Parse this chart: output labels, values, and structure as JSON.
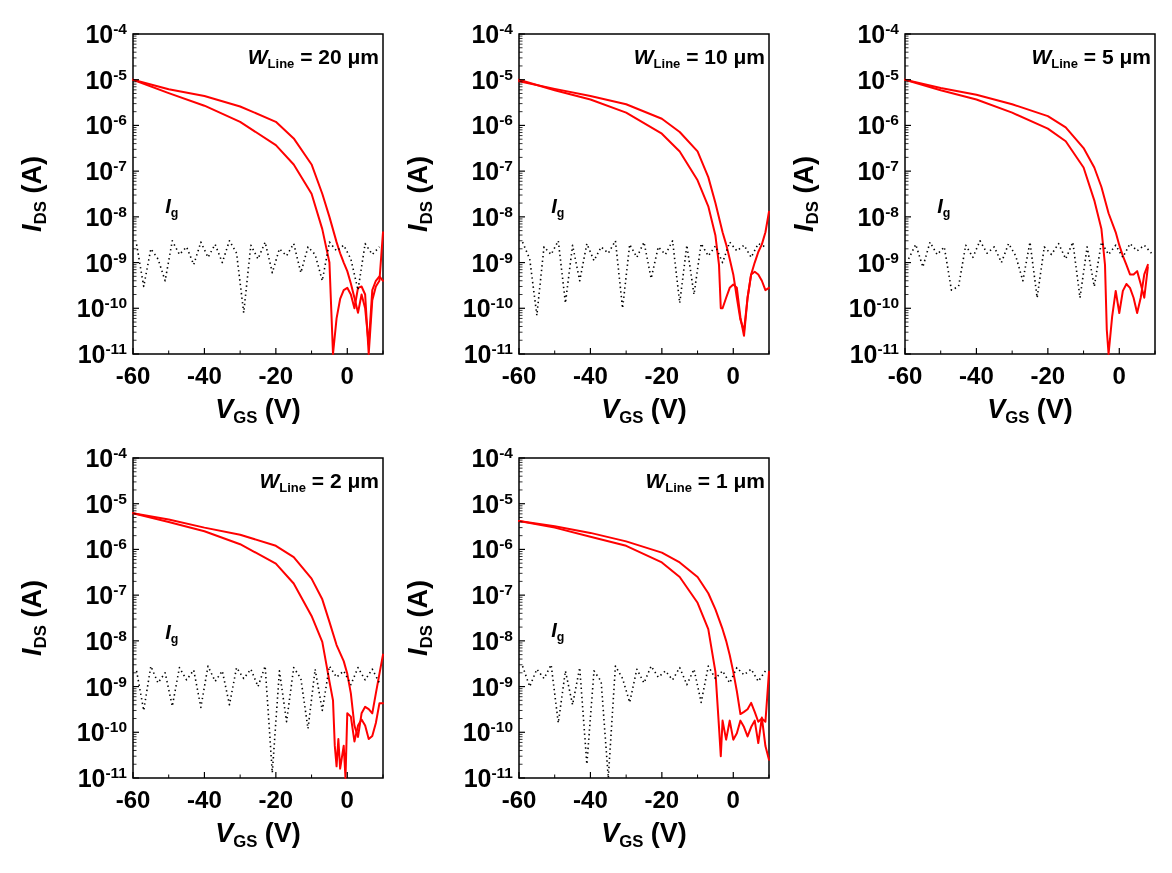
{
  "chart_data": [
    {
      "type": "line",
      "title": "W$_{Line}$ = 20 μm",
      "xlabel": "V$_{GS}$ (V)",
      "ylabel": "I$_{DS}$ (A)",
      "log": "y",
      "xlim": [
        -60,
        10
      ],
      "ylim": [
        1e-11,
        0.0001
      ],
      "xticks": [
        -60,
        -40,
        -20,
        0
      ],
      "yticks": [
        {
          "value": 1e-11,
          "label": "10$^{-11}$"
        },
        {
          "value": 1e-10,
          "label": "10$^{-10}$"
        },
        {
          "value": 1e-09,
          "label": "10$^{-9}$"
        },
        {
          "value": 1e-08,
          "label": "10$^{-8}$"
        },
        {
          "value": 1e-07,
          "label": "10$^{-7}$"
        },
        {
          "value": 1e-06,
          "label": "10$^{-6}$"
        },
        {
          "value": 1e-05,
          "label": "10$^{-5}$"
        },
        {
          "value": 0.0001,
          "label": "10$^{-4}$"
        }
      ],
      "series": [
        {
          "color": "#ff0000",
          "line_style": "solid",
          "x": [
            -60,
            -50,
            -40,
            -30,
            -20,
            -15,
            -10,
            -7,
            -5,
            -3,
            -2,
            -1,
            0,
            1,
            2,
            3,
            4,
            5,
            6,
            7,
            8,
            9,
            10
          ],
          "values": [
            1e-05,
            6.2e-06,
            4.4e-06,
            2.6e-06,
            1.2e-06,
            5.2e-07,
            1.4e-07,
            3.2e-08,
            1e-08,
            2.8e-09,
            1.6e-09,
            1e-09,
            6.5e-10,
            3.5e-10,
            1.7e-10,
            8e-11,
            2e-10,
            1e-10,
            1.6e-11,
            2.5e-10,
            4e-10,
            5e-10,
            4e-10
          ]
        },
        {
          "color": "#ff0000",
          "line_style": "solid",
          "x": [
            -60,
            -50,
            -40,
            -30,
            -20,
            -15,
            -10,
            -7,
            -5,
            -4.5,
            -4,
            -3,
            -2,
            -1,
            0,
            1,
            2,
            3,
            4,
            5,
            6,
            7,
            8,
            9,
            10
          ],
          "values": [
            1e-05,
            5.1e-06,
            2.7e-06,
            1.2e-06,
            3.7e-07,
            1.4e-07,
            3.2e-08,
            5.4e-09,
            1e-09,
            1e-10,
            1e-11,
            6e-11,
            1.6e-10,
            2.5e-10,
            2.8e-10,
            2e-10,
            1e-10,
            2.8e-10,
            3e-10,
            2e-10,
            1e-11,
            1.5e-10,
            3e-10,
            4e-10,
            4.6e-09
          ]
        },
        {
          "name": "I$_{g}$",
          "color": "#000000",
          "line_style": "dotted",
          "x": [
            -59,
            -57,
            -55,
            -53,
            -51,
            -49,
            -47,
            -45,
            -43,
            -41,
            -39,
            -37,
            -35,
            -33,
            -31,
            -29,
            -27,
            -25,
            -23,
            -21,
            -19,
            -17,
            -15,
            -13,
            -11,
            -9,
            -7,
            -5,
            -3,
            -1,
            1,
            3,
            5,
            7,
            9
          ],
          "values": [
            2.5e-09,
            3e-10,
            2e-09,
            1.2e-09,
            4e-10,
            3e-09,
            1.5e-09,
            2.2e-09,
            9e-10,
            2.8e-09,
            1.3e-09,
            2.5e-09,
            1e-09,
            3e-09,
            1.6e-09,
            8e-11,
            2.4e-09,
            1.2e-09,
            2.8e-09,
            6e-10,
            2e-09,
            1.4e-09,
            2.6e-09,
            6e-10,
            2.2e-09,
            1.5e-09,
            4e-10,
            2.8e-09,
            1.8e-09,
            2.4e-09,
            1.2e-09,
            2.5e-10,
            2.6e-09,
            1.5e-09,
            2.2e-09
          ]
        }
      ]
    },
    {
      "type": "line",
      "title": "W$_{Line}$ = 10 μm",
      "xlabel": "V$_{GS}$ (V)",
      "ylabel": "I$_{DS}$ (A)",
      "log": "y",
      "xlim": [
        -60,
        10
      ],
      "ylim": [
        1e-11,
        0.0001
      ],
      "xticks": [
        -60,
        -40,
        -20,
        0
      ],
      "yticks": [
        {
          "value": 1e-11,
          "label": "10$^{-11}$"
        },
        {
          "value": 1e-10,
          "label": "10$^{-10}$"
        },
        {
          "value": 1e-09,
          "label": "10$^{-9}$"
        },
        {
          "value": 1e-08,
          "label": "10$^{-8}$"
        },
        {
          "value": 1e-07,
          "label": "10$^{-7}$"
        },
        {
          "value": 1e-06,
          "label": "10$^{-6}$"
        },
        {
          "value": 1e-05,
          "label": "10$^{-5}$"
        },
        {
          "value": 0.0001,
          "label": "10$^{-4}$"
        }
      ],
      "series": [
        {
          "color": "#ff0000",
          "line_style": "solid",
          "x": [
            -60,
            -50,
            -40,
            -30,
            -20,
            -15,
            -10,
            -7,
            -5,
            -3,
            -2,
            -1,
            0,
            1,
            2,
            3,
            4,
            5,
            6,
            7,
            8,
            9,
            10
          ],
          "values": [
            9.3e-06,
            6.3e-06,
            4.4e-06,
            2.9e-06,
            1.4e-06,
            7.2e-07,
            2.7e-07,
            7.4e-08,
            2e-08,
            4.6e-09,
            2.5e-09,
            1.2e-09,
            5.5e-10,
            1.7e-10,
            5.6e-11,
            3.2e-11,
            1.7e-10,
            5.5e-10,
            6.3e-10,
            5.5e-10,
            4e-10,
            2.5e-10,
            2.8e-10
          ]
        },
        {
          "color": "#ff0000",
          "line_style": "solid",
          "x": [
            -60,
            -50,
            -40,
            -30,
            -20,
            -15,
            -10,
            -7,
            -5,
            -4,
            -3.5,
            -3,
            -2,
            -1,
            0,
            1,
            2,
            3,
            4,
            5,
            6,
            7,
            8,
            9,
            10
          ],
          "values": [
            1e-05,
            5.9e-06,
            3.7e-06,
            1.9e-06,
            6.6e-07,
            2.7e-07,
            6.3e-08,
            1.7e-08,
            3.9e-09,
            8.9e-10,
            1e-10,
            1e-10,
            1.7e-10,
            2.8e-10,
            3.3e-10,
            2.8e-10,
            6.3e-11,
            2.5e-11,
            1.7e-10,
            5.5e-10,
            1e-09,
            1.7e-09,
            2.5e-09,
            4.6e-09,
            1.3e-08
          ]
        },
        {
          "name": "I$_{g}$",
          "color": "#000000",
          "line_style": "dotted",
          "x": [
            -59,
            -57,
            -55,
            -53,
            -51,
            -49,
            -47,
            -45,
            -43,
            -41,
            -39,
            -37,
            -35,
            -33,
            -31,
            -29,
            -27,
            -25,
            -23,
            -21,
            -19,
            -17,
            -15,
            -13,
            -11,
            -9,
            -7,
            -5,
            -3,
            -1,
            1,
            3,
            5,
            7,
            9
          ],
          "values": [
            2.8e-09,
            1.2e-09,
            7e-11,
            2.2e-09,
            1.5e-09,
            3e-09,
            1.3e-10,
            2.4e-09,
            4e-10,
            2.6e-09,
            1.1e-09,
            2.2e-09,
            1.6e-09,
            3e-09,
            1e-10,
            2.5e-09,
            1.3e-09,
            2.8e-09,
            4.5e-10,
            2.2e-09,
            1.5e-09,
            3e-09,
            1.3e-10,
            2.4e-09,
            2e-10,
            2.6e-09,
            1.4e-09,
            2.3e-09,
            1e-09,
            2.8e-09,
            1.8e-09,
            2.4e-09,
            1.3e-09,
            2.6e-09,
            2.2e-09
          ]
        }
      ]
    },
    {
      "type": "line",
      "title": "W$_{Line}$ = 5 μm",
      "xlabel": "V$_{GS}$ (V)",
      "ylabel": "I$_{DS}$ (A)",
      "log": "y",
      "xlim": [
        -60,
        10
      ],
      "ylim": [
        1e-11,
        0.0001
      ],
      "xticks": [
        -60,
        -40,
        -20,
        0
      ],
      "yticks": [
        {
          "value": 1e-11,
          "label": "10$^{-11}$"
        },
        {
          "value": 1e-10,
          "label": "10$^{-10}$"
        },
        {
          "value": 1e-09,
          "label": "10$^{-9}$"
        },
        {
          "value": 1e-08,
          "label": "10$^{-8}$"
        },
        {
          "value": 1e-07,
          "label": "10$^{-7}$"
        },
        {
          "value": 1e-06,
          "label": "10$^{-6}$"
        },
        {
          "value": 1e-05,
          "label": "10$^{-5}$"
        },
        {
          "value": 0.0001,
          "label": "10$^{-4}$"
        }
      ],
      "series": [
        {
          "color": "#ff0000",
          "line_style": "solid",
          "x": [
            -60,
            -50,
            -40,
            -30,
            -20,
            -15,
            -10,
            -7,
            -5,
            -3,
            -1,
            0,
            1,
            2,
            3,
            4,
            5,
            6,
            7,
            8
          ],
          "values": [
            1e-05,
            6.6e-06,
            4.7e-06,
            2.9e-06,
            1.6e-06,
            9.1e-07,
            3.2e-07,
            1.2e-07,
            4.5e-08,
            1.2e-08,
            4.6e-09,
            2.4e-09,
            1.4e-09,
            8.9e-10,
            5.5e-10,
            5.5e-10,
            6.5e-10,
            3.4e-10,
            1.7e-10,
            7.9e-10
          ]
        },
        {
          "color": "#ff0000",
          "line_style": "solid",
          "x": [
            -60,
            -50,
            -40,
            -30,
            -20,
            -15,
            -10,
            -7,
            -5,
            -4,
            -3.5,
            -3,
            -2,
            -1,
            0,
            1,
            2,
            3,
            4,
            5,
            6,
            7,
            8
          ],
          "values": [
            1e-05,
            5.9e-06,
            3.7e-06,
            1.9e-06,
            8.5e-07,
            4.5e-07,
            1.2e-07,
            2.3e-08,
            5.4e-09,
            8.9e-10,
            3.4e-11,
            1e-11,
            6.6e-11,
            2.4e-10,
            7.9e-11,
            2.4e-10,
            3.4e-10,
            2.8e-10,
            1.7e-10,
            7.9e-11,
            1.7e-10,
            5.5e-10,
            8.9e-10
          ]
        },
        {
          "name": "I$_{g}$",
          "color": "#000000",
          "line_style": "dotted",
          "x": [
            -59,
            -57,
            -55,
            -53,
            -51,
            -49,
            -47,
            -45,
            -43,
            -41,
            -39,
            -37,
            -35,
            -33,
            -31,
            -29,
            -27,
            -25,
            -23,
            -21,
            -19,
            -17,
            -15,
            -13,
            -11,
            -9,
            -7,
            -5,
            -3,
            -1,
            1,
            3,
            5,
            7,
            9
          ],
          "values": [
            1.2e-09,
            2.5e-09,
            8e-10,
            2.8e-09,
            1.5e-09,
            2.2e-09,
            2.5e-10,
            3e-10,
            2.4e-09,
            1.3e-09,
            3e-09,
            1.6e-09,
            2.2e-09,
            1e-09,
            2.6e-09,
            1.4e-09,
            4e-10,
            2.8e-09,
            1.7e-10,
            2.2e-09,
            1.5e-09,
            2.6e-09,
            1.2e-09,
            2.8e-09,
            1.7e-10,
            2.2e-09,
            3e-10,
            2.8e-09,
            1.5e-09,
            2.4e-09,
            1.3e-09,
            2.6e-09,
            1.8e-09,
            2.4e-09,
            1.6e-09
          ]
        }
      ]
    },
    {
      "type": "line",
      "title": "W$_{Line}$ = 2 μm",
      "xlabel": "V$_{GS}$ (V)",
      "ylabel": "I$_{DS}$ (A)",
      "log": "y",
      "xlim": [
        -60,
        10
      ],
      "ylim": [
        1e-11,
        0.0001
      ],
      "xticks": [
        -60,
        -40,
        -20,
        0
      ],
      "yticks": [
        {
          "value": 1e-11,
          "label": "10$^{-11}$"
        },
        {
          "value": 1e-10,
          "label": "10$^{-10}$"
        },
        {
          "value": 1e-09,
          "label": "10$^{-9}$"
        },
        {
          "value": 1e-08,
          "label": "10$^{-8}$"
        },
        {
          "value": 1e-07,
          "label": "10$^{-7}$"
        },
        {
          "value": 1e-06,
          "label": "10$^{-6}$"
        },
        {
          "value": 1e-05,
          "label": "10$^{-5}$"
        },
        {
          "value": 0.0001,
          "label": "10$^{-4}$"
        }
      ],
      "series": [
        {
          "color": "#ff0000",
          "line_style": "solid",
          "x": [
            -60,
            -50,
            -40,
            -30,
            -20,
            -15,
            -10,
            -7,
            -5,
            -3,
            -2,
            -1,
            0,
            1,
            2,
            3,
            4,
            5,
            6,
            7,
            8,
            9,
            10
          ],
          "values": [
            6.2e-06,
            4.5e-06,
            3e-06,
            2.1e-06,
            1.2e-06,
            6.8e-07,
            2.3e-07,
            8.1e-08,
            2.6e-08,
            8.1e-09,
            5.4e-09,
            3.6e-09,
            1.9e-09,
            7.1e-10,
            1.4e-10,
            7.9e-11,
            2.6e-10,
            3.6e-10,
            3.2e-10,
            2.6e-10,
            7.1e-10,
            1.9e-09,
            5e-09
          ]
        },
        {
          "color": "#ff0000",
          "line_style": "solid",
          "x": [
            -60,
            -50,
            -40,
            -30,
            -20,
            -15,
            -10,
            -7,
            -5,
            -4,
            -3.5,
            -3,
            -2.5,
            -2,
            -1,
            -0.5,
            0,
            1,
            2,
            3,
            4,
            5,
            6,
            7,
            8,
            9,
            10
          ],
          "values": [
            6.2e-06,
            4e-06,
            2.5e-06,
            1.3e-06,
            4.9e-07,
            1.8e-07,
            3.5e-08,
            9.5e-09,
            1.3e-09,
            5e-10,
            5.1e-11,
            1.8e-11,
            7.1e-11,
            1.6e-11,
            5.1e-11,
            1e-11,
            2.6e-10,
            2.2e-10,
            6.3e-11,
            1.4e-10,
            1.9e-10,
            1.4e-10,
            7.1e-11,
            8.3e-11,
            1.6e-10,
            4.3e-10,
            4.3e-10
          ]
        },
        {
          "name": "I$_{g}$",
          "color": "#000000",
          "line_style": "dotted",
          "x": [
            -59,
            -57,
            -55,
            -53,
            -51,
            -49,
            -47,
            -45,
            -43,
            -41,
            -39,
            -37,
            -35,
            -33,
            -31,
            -29,
            -27,
            -25,
            -23,
            -21,
            -19,
            -17,
            -15,
            -13,
            -11,
            -9,
            -7,
            -5,
            -3,
            -1,
            1,
            3,
            5,
            7,
            9
          ],
          "values": [
            2.2e-09,
            3e-10,
            2.8e-09,
            1.2e-09,
            2e-09,
            3.7e-10,
            2.6e-09,
            1.4e-09,
            2.3e-09,
            3.5e-10,
            2.8e-09,
            1.3e-09,
            2.2e-09,
            4e-10,
            2.6e-09,
            1.5e-09,
            2.4e-09,
            1e-09,
            2.8e-09,
            1.3e-11,
            2.2e-09,
            1.7e-10,
            2.6e-09,
            1.5e-09,
            1.2e-10,
            2.4e-09,
            3e-10,
            2.8e-09,
            1.6e-09,
            2.2e-09,
            1.1e-09,
            2.6e-09,
            1.4e-09,
            2.4e-09,
            1.2e-09
          ]
        }
      ]
    },
    {
      "type": "line",
      "title": "W$_{Line}$ = 1 μm",
      "xlabel": "V$_{GS}$ (V)",
      "ylabel": "I$_{DS}$ (A)",
      "log": "y",
      "xlim": [
        -60,
        10
      ],
      "ylim": [
        1e-11,
        0.0001
      ],
      "xticks": [
        -60,
        -40,
        -20,
        0
      ],
      "yticks": [
        {
          "value": 1e-11,
          "label": "10$^{-11}$"
        },
        {
          "value": 1e-10,
          "label": "10$^{-10}$"
        },
        {
          "value": 1e-09,
          "label": "10$^{-9}$"
        },
        {
          "value": 1e-08,
          "label": "10$^{-8}$"
        },
        {
          "value": 1e-07,
          "label": "10$^{-7}$"
        },
        {
          "value": 1e-06,
          "label": "10$^{-6}$"
        },
        {
          "value": 1e-05,
          "label": "10$^{-5}$"
        },
        {
          "value": 0.0001,
          "label": "10$^{-4}$"
        }
      ],
      "series": [
        {
          "color": "#ff0000",
          "line_style": "solid",
          "x": [
            -60,
            -50,
            -40,
            -30,
            -20,
            -15,
            -10,
            -7,
            -5,
            -3,
            -2,
            -1,
            0,
            1,
            2,
            3,
            4,
            5,
            6,
            7,
            8,
            9,
            10
          ],
          "values": [
            4.2e-06,
            3.2e-06,
            2.3e-06,
            1.5e-06,
            8.5e-07,
            5.2e-07,
            2.5e-07,
            1.1e-07,
            4.9e-08,
            1.8e-08,
            1e-08,
            4.9e-09,
            2.1e-09,
            7.9e-10,
            2.5e-10,
            2.8e-10,
            3.2e-10,
            4.4e-10,
            2.8e-10,
            1.7e-10,
            2e-10,
            1.7e-10,
            2.1e-09
          ]
        },
        {
          "color": "#ff0000",
          "line_style": "solid",
          "x": [
            -60,
            -50,
            -40,
            -30,
            -20,
            -15,
            -10,
            -7,
            -5,
            -4,
            -3.5,
            -3,
            -2,
            -1,
            0,
            1,
            2,
            3,
            4,
            5,
            6,
            7,
            8,
            9,
            10
          ],
          "values": [
            4.2e-06,
            3e-06,
            1.9e-06,
            1.2e-06,
            5.2e-07,
            2.5e-07,
            6.8e-08,
            1.8e-08,
            2.1e-09,
            1.3e-10,
            3e-11,
            1.8e-10,
            6.9e-11,
            1.8e-10,
            6.9e-11,
            9.5e-11,
            1.8e-10,
            1.3e-10,
            8.1e-11,
            1.3e-10,
            1.8e-10,
            5.8e-11,
            2.1e-10,
            5e-11,
            2.5e-11
          ]
        },
        {
          "name": "I$_{g}$",
          "color": "#000000",
          "line_style": "dotted",
          "x": [
            -59,
            -57,
            -55,
            -53,
            -51,
            -49,
            -47,
            -45,
            -43,
            -41,
            -39,
            -37,
            -35,
            -33,
            -31,
            -29,
            -27,
            -25,
            -23,
            -21,
            -19,
            -17,
            -15,
            -13,
            -11,
            -9,
            -7,
            -5,
            -3,
            -1,
            1,
            3,
            5,
            7,
            9
          ],
          "values": [
            2.8e-09,
            1e-09,
            2.4e-09,
            1.5e-09,
            3e-09,
            1.6e-10,
            2.2e-09,
            4e-10,
            2.6e-09,
            2e-11,
            2.2e-09,
            1.3e-09,
            1e-11,
            2.8e-09,
            1.5e-09,
            4.5e-10,
            2.4e-09,
            1.2e-09,
            2.8e-09,
            1.6e-09,
            2.2e-09,
            1.4e-09,
            2.6e-09,
            1.1e-09,
            2.4e-09,
            4.5e-10,
            2.8e-09,
            1.5e-09,
            2.2e-09,
            1.2e-09,
            2.6e-09,
            1.8e-09,
            2.4e-09,
            1.3e-09,
            2.2e-09
          ]
        }
      ]
    }
  ]
}
